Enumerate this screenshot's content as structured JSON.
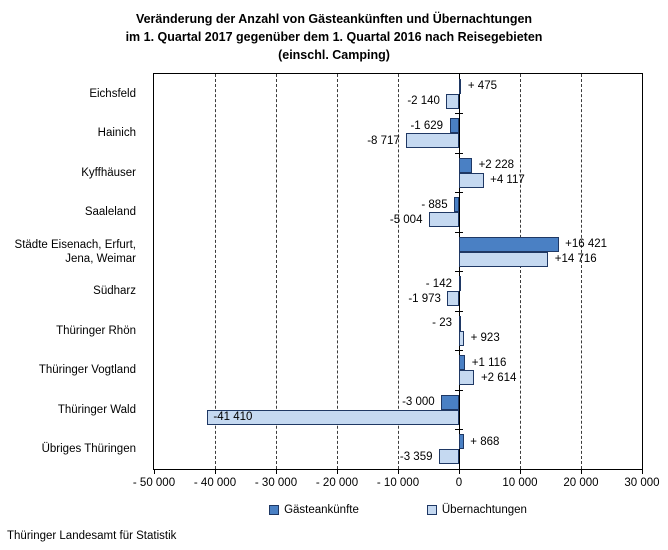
{
  "title": {
    "lines": [
      "Veränderung der Anzahl von Gästeankünften und Übernachtungen",
      "im 1. Quartal 2017 gegenüber dem 1. Quartal 2016 nach Reisegebieten",
      "(einschl. Camping)"
    ]
  },
  "footer": {
    "source": "Thüringer Landesamt für Statistik"
  },
  "chart_data": {
    "type": "bar",
    "orientation": "horizontal",
    "title": "Veränderung der Anzahl von Gästeankünften und Übernachtungen im 1. Quartal 2017 gegenüber dem 1. Quartal 2016 nach Reisegebieten (einschl. Camping)",
    "categories": [
      "Eichsfeld",
      "Hainich",
      "Kyffhäuser",
      "Saaleland",
      "Städte Eisenach, Erfurt,\nJena, Weimar",
      "Südharz",
      "Thüringer Rhön",
      "Thüringer Vogtland",
      "Thüringer Wald",
      "Übriges Thüringen"
    ],
    "series": [
      {
        "name": "Gästeankünfte",
        "color": "#4a80c4",
        "border_color": "#1f3864",
        "values": [
          475,
          -1629,
          2228,
          -885,
          16421,
          -142,
          -23,
          1116,
          -3000,
          868
        ],
        "labels": [
          "+ 475",
          "-1 629",
          "+2 228",
          "- 885",
          "+16 421",
          "- 142",
          "- 23",
          "+1 116",
          "-3 000",
          "+ 868"
        ],
        "inside_label_indices": []
      },
      {
        "name": "Übernachtungen",
        "color": "#c5d9f1",
        "border_color": "#1f3864",
        "values": [
          -2140,
          -8717,
          4117,
          -5004,
          14716,
          -1973,
          923,
          2614,
          -41410,
          -3359
        ],
        "labels": [
          "-2 140",
          "-8 717",
          "+4 117",
          "-5 004",
          "+14 716",
          "-1 973",
          "+ 923",
          "+2 614",
          "-41 410",
          "-3 359"
        ],
        "inside_label_indices": [
          8
        ]
      }
    ],
    "xlim": [
      -50000,
      30000
    ],
    "xticks": [
      {
        "value": -50000,
        "label": "- 50 000"
      },
      {
        "value": -40000,
        "label": "- 40 000"
      },
      {
        "value": -30000,
        "label": "- 30 000"
      },
      {
        "value": -20000,
        "label": "- 20 000"
      },
      {
        "value": -10000,
        "label": "- 10 000"
      },
      {
        "value": 0,
        "label": "0"
      },
      {
        "value": 10000,
        "label": "10 000"
      },
      {
        "value": 20000,
        "label": "20 000"
      },
      {
        "value": 30000,
        "label": "30 000"
      }
    ],
    "grid": "vertical-dashed",
    "legend_position": "bottom",
    "xlabel": "",
    "ylabel": ""
  }
}
